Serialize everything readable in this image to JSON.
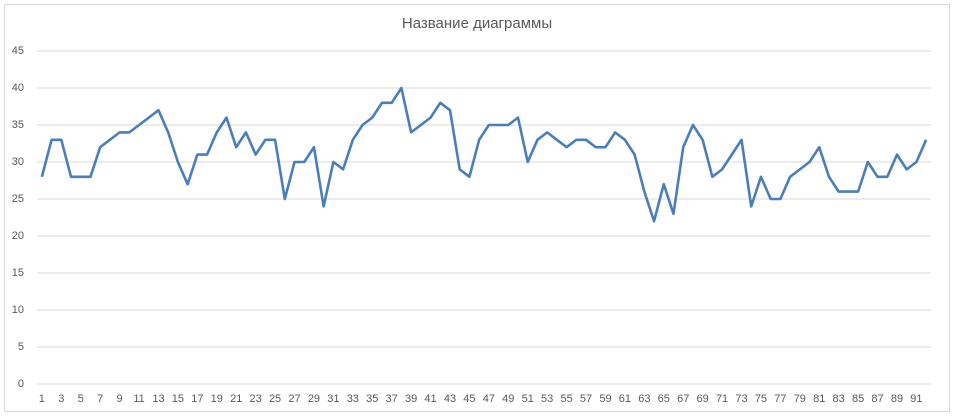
{
  "chart_data": {
    "type": "line",
    "title": "Название диаграммы",
    "categories": [
      1,
      null,
      3,
      null,
      5,
      null,
      7,
      null,
      9,
      null,
      11,
      null,
      13,
      null,
      15,
      null,
      17,
      null,
      19,
      null,
      21,
      null,
      23,
      null,
      25,
      null,
      27,
      null,
      29,
      null,
      31,
      null,
      33,
      null,
      35,
      null,
      37,
      null,
      39,
      null,
      41,
      null,
      43,
      null,
      45,
      null,
      47,
      null,
      49,
      null,
      51,
      null,
      53,
      null,
      55,
      null,
      57,
      null,
      59,
      null,
      61,
      null,
      63,
      null,
      65,
      null,
      67,
      null,
      69,
      null,
      71,
      null,
      73,
      null,
      75,
      null,
      77,
      null,
      79,
      null,
      81,
      null,
      83,
      null,
      85,
      null,
      87,
      null,
      89,
      null,
      91,
      null
    ],
    "values": [
      28,
      33,
      33,
      28,
      28,
      28,
      32,
      33,
      34,
      34,
      35,
      36,
      37,
      34,
      30,
      27,
      31,
      31,
      34,
      36,
      32,
      34,
      31,
      33,
      33,
      25,
      30,
      30,
      32,
      24,
      30,
      29,
      33,
      35,
      36,
      38,
      38,
      40,
      34,
      35,
      36,
      38,
      37,
      29,
      28,
      33,
      35,
      35,
      35,
      36,
      30,
      33,
      34,
      33,
      32,
      33,
      33,
      32,
      32,
      34,
      33,
      31,
      26,
      22,
      27,
      23,
      32,
      35,
      33,
      28,
      29,
      31,
      33,
      24,
      28,
      25,
      25,
      28,
      29,
      30,
      32,
      28,
      26,
      26,
      26,
      30,
      28,
      28,
      31,
      29,
      30,
      33
    ],
    "color": "#4a7ebb",
    "ylim": [
      0,
      45
    ],
    "yticks": [
      0,
      5,
      10,
      15,
      20,
      25,
      30,
      35,
      40,
      45
    ],
    "grid": true
  }
}
